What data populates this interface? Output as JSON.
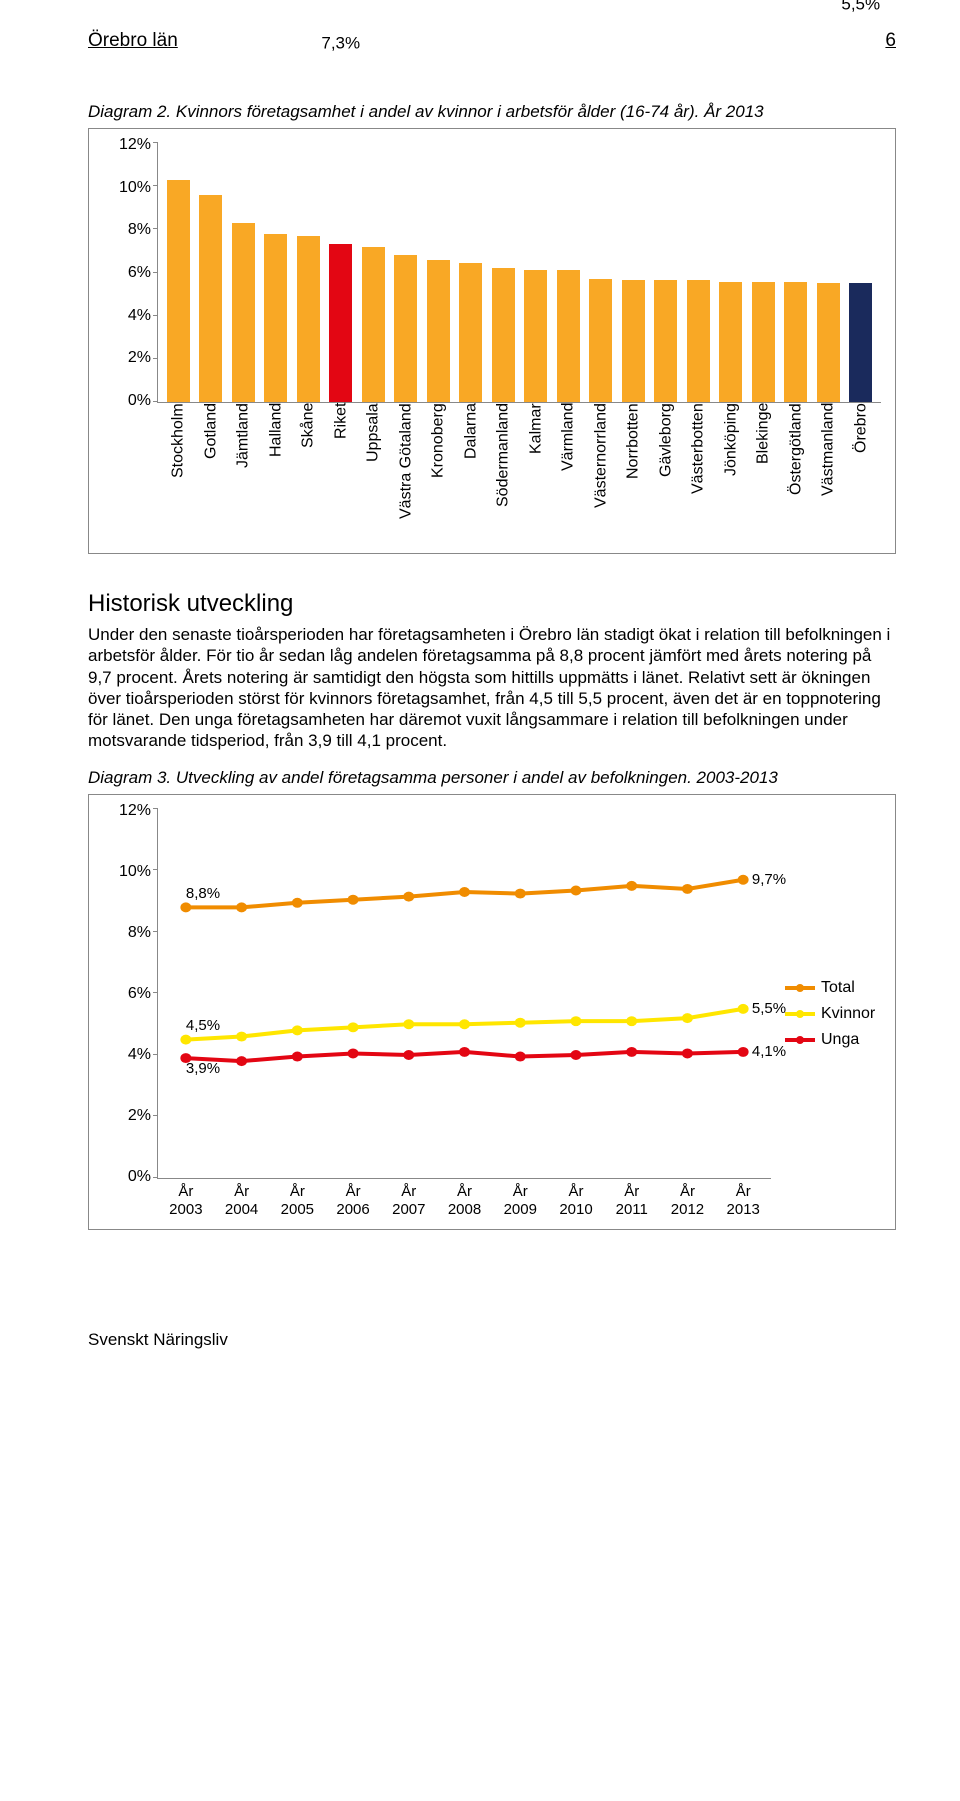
{
  "header": {
    "title": "Örebro län",
    "page_num": "6"
  },
  "diagram2": {
    "caption": "Diagram 2. Kvinnors företagsamhet i andel av kvinnor i arbetsför ålder (16-74 år). År 2013",
    "chart": {
      "type": "bar",
      "ymin": 0,
      "ymax": 12,
      "ystep": 2,
      "bar_color": "#f9a825",
      "highlight_riket_color": "#e30613",
      "highlight_orebro_color": "#1a2a5c",
      "value_label_7_3": "7,3%",
      "value_label_5_5": "5,5%",
      "y_ticks": [
        "0%",
        "2%",
        "4%",
        "6%",
        "8%",
        "10%",
        "12%"
      ],
      "bars": [
        {
          "label": "Stockholm",
          "value": 10.3,
          "color": "#f9a825"
        },
        {
          "label": "Gotland",
          "value": 9.6,
          "color": "#f9a825"
        },
        {
          "label": "Jämtland",
          "value": 8.3,
          "color": "#f9a825"
        },
        {
          "label": "Halland",
          "value": 7.8,
          "color": "#f9a825"
        },
        {
          "label": "Skåne",
          "value": 7.7,
          "color": "#f9a825"
        },
        {
          "label": "Riket",
          "value": 7.3,
          "color": "#e30613",
          "show_label": "7,3%"
        },
        {
          "label": "Uppsala",
          "value": 7.2,
          "color": "#f9a825"
        },
        {
          "label": "Västra Götaland",
          "value": 6.8,
          "color": "#f9a825"
        },
        {
          "label": "Kronoberg",
          "value": 6.6,
          "color": "#f9a825"
        },
        {
          "label": "Dalarna",
          "value": 6.45,
          "color": "#f9a825"
        },
        {
          "label": "Södermanland",
          "value": 6.2,
          "color": "#f9a825"
        },
        {
          "label": "Kalmar",
          "value": 6.1,
          "color": "#f9a825"
        },
        {
          "label": "Värmland",
          "value": 6.1,
          "color": "#f9a825"
        },
        {
          "label": "Västernorrland",
          "value": 5.7,
          "color": "#f9a825"
        },
        {
          "label": "Norrbotten",
          "value": 5.65,
          "color": "#f9a825"
        },
        {
          "label": "Gävleborg",
          "value": 5.65,
          "color": "#f9a825"
        },
        {
          "label": "Västerbotten",
          "value": 5.65,
          "color": "#f9a825"
        },
        {
          "label": "Jönköping",
          "value": 5.55,
          "color": "#f9a825"
        },
        {
          "label": "Blekinge",
          "value": 5.55,
          "color": "#f9a825"
        },
        {
          "label": "Östergötland",
          "value": 5.55,
          "color": "#f9a825"
        },
        {
          "label": "Västmanland",
          "value": 5.5,
          "color": "#f9a825"
        },
        {
          "label": "Örebro",
          "value": 5.5,
          "color": "#1a2a5c",
          "show_label": "5,5%"
        }
      ]
    }
  },
  "historic": {
    "heading": "Historisk utveckling",
    "body": "Under den senaste tioårsperioden har företagsamheten i Örebro län stadigt ökat i relation till befolkningen i arbetsför ålder. För tio år sedan låg andelen företagsamma på 8,8 procent jämfört med årets notering på 9,7 procent. Årets notering är samtidigt den högsta som hittills uppmätts i länet. Relativt sett är ökningen över tioårsperioden störst för kvinnors företagsamhet, från 4,5 till 5,5 procent, även det är en toppnotering för länet. Den unga företagsamheten har däremot vuxit långsammare i relation till befolkningen under motsvarande tidsperiod, från 3,9 till 4,1 procent."
  },
  "diagram3": {
    "caption": "Diagram 3. Utveckling av andel företagsamma personer i andel av befolkningen. 2003-2013",
    "chart": {
      "type": "line",
      "ymin": 0,
      "ymax": 12,
      "ystep": 2,
      "y_ticks": [
        "0%",
        "2%",
        "4%",
        "6%",
        "8%",
        "10%",
        "12%"
      ],
      "x_labels": [
        "År 2003",
        "År 2004",
        "År 2005",
        "År 2006",
        "År 2007",
        "År 2008",
        "År 2009",
        "År 2010",
        "År 2011",
        "År 2012",
        "År 2013"
      ],
      "line_width": 4,
      "marker_radius": 5,
      "series": [
        {
          "name": "Total",
          "color": "#f08c00",
          "values": [
            8.8,
            8.8,
            8.95,
            9.05,
            9.15,
            9.3,
            9.25,
            9.35,
            9.5,
            9.4,
            9.7
          ],
          "start_label": "8,8%",
          "end_label": "9,7%"
        },
        {
          "name": "Kvinnor",
          "color": "#ffe600",
          "values": [
            4.5,
            4.6,
            4.8,
            4.9,
            5.0,
            5.0,
            5.05,
            5.1,
            5.1,
            5.2,
            5.5
          ],
          "start_label": "4,5%",
          "end_label": "5,5%"
        },
        {
          "name": "Unga",
          "color": "#e30613",
          "values": [
            3.9,
            3.8,
            3.95,
            4.05,
            4.0,
            4.1,
            3.95,
            4.0,
            4.1,
            4.05,
            4.1
          ],
          "start_label": "3,9%",
          "end_label": "4,1%"
        }
      ],
      "legend": [
        {
          "label": "Total",
          "color": "#f08c00"
        },
        {
          "label": "Kvinnor",
          "color": "#ffe600"
        },
        {
          "label": "Unga",
          "color": "#e30613"
        }
      ]
    }
  },
  "footer": {
    "text": "Svenskt Näringsliv"
  }
}
